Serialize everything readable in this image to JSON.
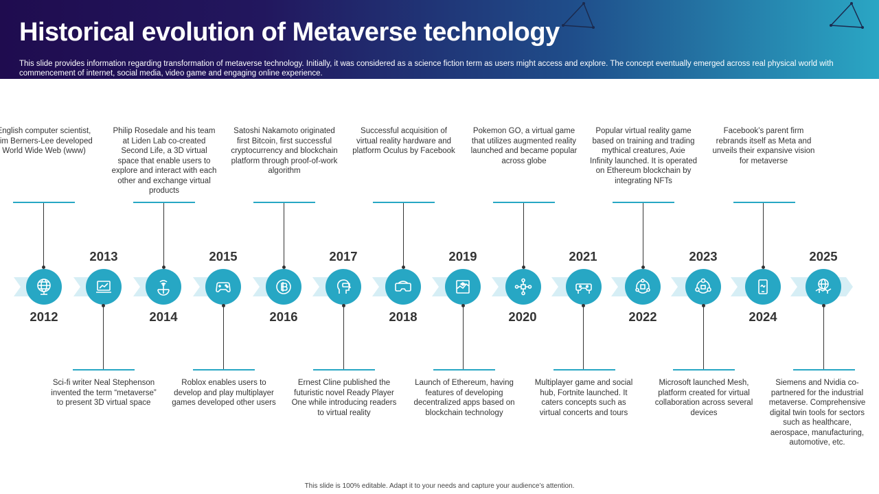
{
  "header": {
    "title": "Historical evolution of Metaverse technology",
    "subtitle": "This slide provides information regarding transformation of metaverse technology. Initially, it was considered as a science fiction term as users might access and explore. The concept eventually emerged across real physical world with commencement of internet, social media, video game and engaging online experience."
  },
  "colors": {
    "accent": "#27a7c4",
    "arrow_light": "#d6eef5",
    "text": "#333333"
  },
  "timeline": [
    {
      "year": "2012",
      "icon": "globe-icon",
      "desc": "English computer scientist, Tim Berners-Lee developed World Wide Web (www)"
    },
    {
      "year": "2013",
      "icon": "laptop-chart-icon",
      "desc": "Sci-fi writer Neal Stephenson invented the term “metaverse” to present 3D virtual space"
    },
    {
      "year": "2014",
      "icon": "globe-signal-icon",
      "desc": "Philip Rosedale and his team at Liden Lab co-created Second Life, a 3D virtual space that enable users to explore and interact with each other and exchange virtual products"
    },
    {
      "year": "2015",
      "icon": "gamepad-icon",
      "desc": "Roblox enables users to develop and play multiplayer games developed other users"
    },
    {
      "year": "2016",
      "icon": "bitcoin-icon",
      "desc": "Satoshi Nakamoto originated first Bitcoin, first successful cryptocurrency and blockchain platform through proof-of-work algorithm"
    },
    {
      "year": "2017",
      "icon": "vr-head-icon",
      "desc": "Ernest Cline published the futuristic novel Ready Player One while introducing readers to virtual reality"
    },
    {
      "year": "2018",
      "icon": "vr-headset-icon",
      "desc": "Successful acquisition of virtual reality hardware and platform Oculus by Facebook"
    },
    {
      "year": "2019",
      "icon": "blockchain-cube-icon",
      "desc": "Launch of Ethereum, having features of developing decentralized apps based on blockchain technology"
    },
    {
      "year": "2020",
      "icon": "network-nodes-icon",
      "desc": "Pokemon GO, a virtual game that utilizes augmented reality launched and became popular across globe"
    },
    {
      "year": "2021",
      "icon": "vr-goggles-icon",
      "desc": "Multiplayer game and social hub, Fortnite launched. It caters concepts such as virtual concerts and tours"
    },
    {
      "year": "2022",
      "icon": "nft-network-icon",
      "desc": "Popular virtual reality game based on training and trading mythical creatures, Axie  Infinity launched. It is operated on Ethereum blockchain by integrating NFTs"
    },
    {
      "year": "2023",
      "icon": "collaboration-icon",
      "desc": "Microsoft launched Mesh, platform created for virtual collaboration across several devices"
    },
    {
      "year": "2024",
      "icon": "mobile-meta-icon",
      "desc": "Facebook’s parent firm rebrands itself as Meta and unveils their expansive vision for metaverse"
    },
    {
      "year": "2025",
      "icon": "handshake-icon",
      "desc": "Siemens and Nvidia co-partnered for the industrial metaverse. Comprehensive digital twin tools for sectors such as healthcare, aerospace, manufacturing, automotive, etc."
    }
  ],
  "footer": "This slide is 100% editable.  Adapt it to your needs and capture your audience’s attention."
}
